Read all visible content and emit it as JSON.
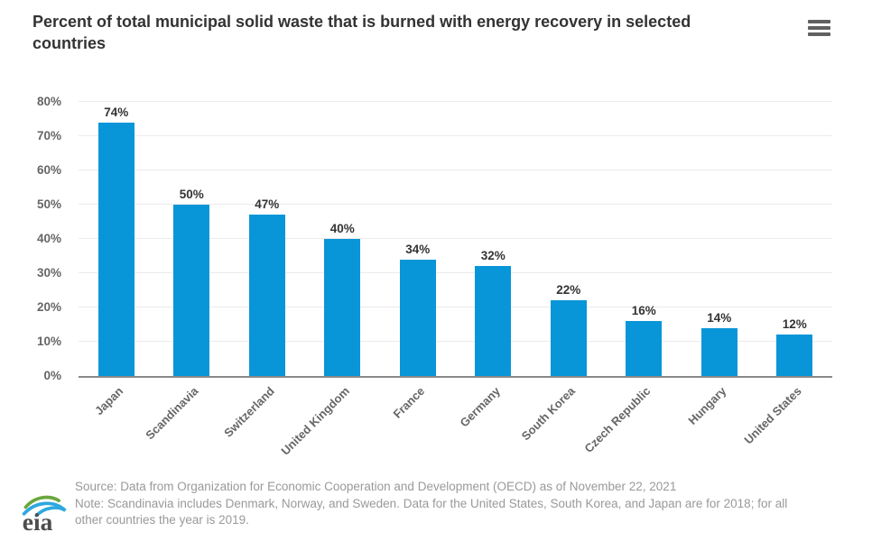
{
  "chart_data": {
    "type": "bar",
    "title": "Percent of total municipal solid waste that is burned with energy recovery in selected countries",
    "categories": [
      "Japan",
      "Scandinavia",
      "Switzerland",
      "United Kingdom",
      "France",
      "Germany",
      "South Korea",
      "Czech Republic",
      "Hungary",
      "United States"
    ],
    "values": [
      74,
      50,
      47,
      40,
      34,
      32,
      22,
      16,
      14,
      12
    ],
    "data_labels": [
      "74%",
      "50%",
      "47%",
      "40%",
      "34%",
      "32%",
      "22%",
      "16%",
      "14%",
      "12%"
    ],
    "unit": "%",
    "xlabel": "",
    "ylabel": "",
    "ylim": [
      0,
      80
    ],
    "ytick_step": 10,
    "ytick_labels": [
      "0%",
      "10%",
      "20%",
      "30%",
      "40%",
      "50%",
      "60%",
      "70%",
      "80%"
    ],
    "grid": "horizontal",
    "legend": "none",
    "bar_color": "#0996d8"
  },
  "header": {
    "menu_icon": "hamburger-icon"
  },
  "footer": {
    "logo_text": "eia",
    "source": "Source: Data from Organization for Economic Cooperation and Development (OECD) as of November 22, 2021",
    "note": "Note: Scandinavia includes Denmark, Norway, and Sweden. Data for the United States, South Korea, and Japan are for 2018; for all other countries the year is 2019."
  },
  "colors": {
    "bar": "#0996d8",
    "title_text": "#333333",
    "axis_line": "#8a8a8a",
    "gridline": "#ebebeb",
    "tick_label": "#666666",
    "footnote_text": "#999999"
  }
}
